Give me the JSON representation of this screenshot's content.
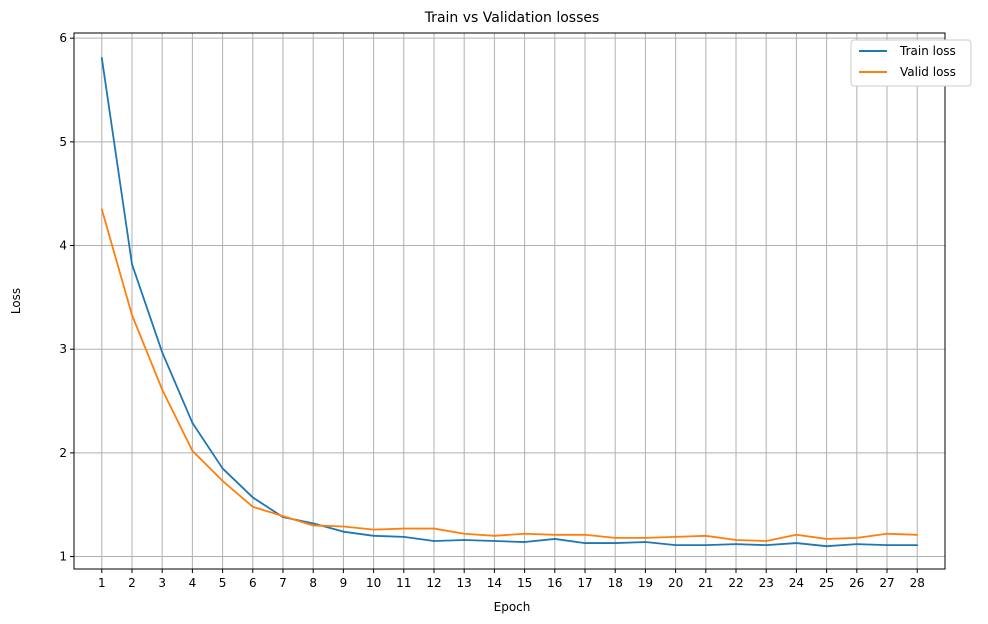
{
  "chart_data": {
    "type": "line",
    "title": "Train vs Validation losses",
    "xlabel": "Epoch",
    "ylabel": "Loss",
    "x": [
      1,
      2,
      3,
      4,
      5,
      6,
      7,
      8,
      9,
      10,
      11,
      12,
      13,
      14,
      15,
      16,
      17,
      18,
      19,
      20,
      21,
      22,
      23,
      24,
      25,
      26,
      27,
      28
    ],
    "xlim": [
      0.08,
      28.92
    ],
    "ylim": [
      0.88,
      6.05
    ],
    "yticks": [
      1,
      2,
      3,
      4,
      5,
      6
    ],
    "grid": true,
    "legend_position": "top-right",
    "series": [
      {
        "name": "Train loss",
        "color": "#1f77b4",
        "values": [
          5.81,
          3.82,
          2.97,
          2.29,
          1.85,
          1.57,
          1.38,
          1.32,
          1.24,
          1.2,
          1.19,
          1.15,
          1.16,
          1.15,
          1.14,
          1.17,
          1.13,
          1.13,
          1.14,
          1.11,
          1.11,
          1.12,
          1.11,
          1.13,
          1.1,
          1.12,
          1.11,
          1.11
        ]
      },
      {
        "name": "Valid loss",
        "color": "#ff7f0e",
        "values": [
          4.35,
          3.33,
          2.61,
          2.02,
          1.73,
          1.48,
          1.39,
          1.3,
          1.29,
          1.26,
          1.27,
          1.27,
          1.22,
          1.2,
          1.22,
          1.21,
          1.21,
          1.18,
          1.18,
          1.19,
          1.2,
          1.16,
          1.15,
          1.21,
          1.17,
          1.18,
          1.22,
          1.21
        ]
      }
    ]
  }
}
